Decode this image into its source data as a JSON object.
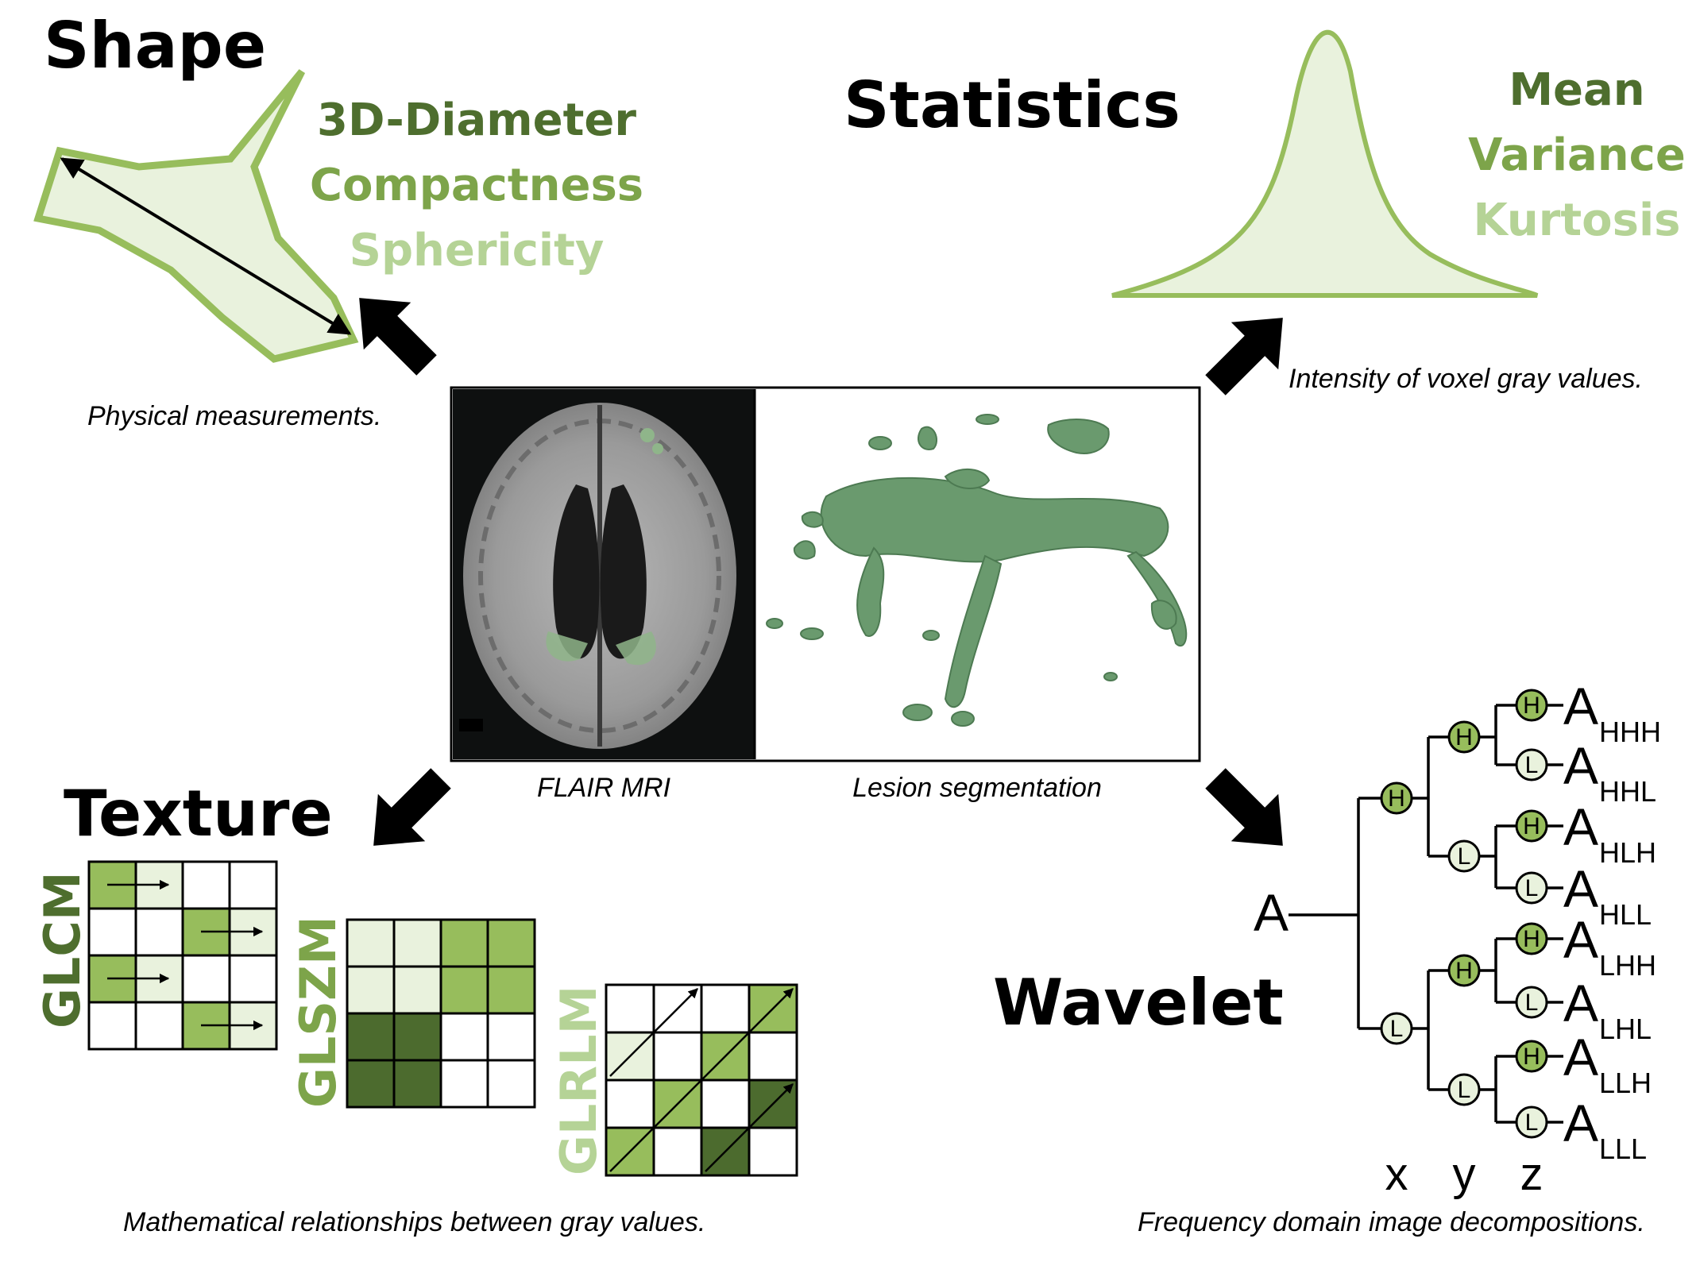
{
  "colors": {
    "light": "#e9f2dd",
    "mid": "#97bd5c",
    "midtext": "#7da44a",
    "dark": "#4c6b2e",
    "darktext": "#4e6e2e",
    "pale": "#b5d396",
    "lesion": "#6a9a6e"
  },
  "shape": {
    "title": "Shape",
    "features": [
      "3D-Diameter",
      "Compactness",
      "Sphericity"
    ],
    "caption": "Physical measurements."
  },
  "statistics": {
    "title": "Statistics",
    "features": [
      "Mean",
      "Variance",
      "Kurtosis"
    ],
    "caption": "Intensity of voxel gray values."
  },
  "center": {
    "mri_caption": "FLAIR MRI",
    "segmentation_caption": "Lesion segmentation"
  },
  "texture": {
    "title": "Texture",
    "caption": "Mathematical relationships between gray values.",
    "matrices": [
      "GLCM",
      "GLSZM",
      "GLRLM"
    ],
    "glszm_grid": [
      [
        "L",
        "L",
        "M",
        "M"
      ],
      [
        "L",
        "L",
        "M",
        "M"
      ],
      [
        "D",
        "D",
        "W",
        "W"
      ],
      [
        "D",
        "D",
        "W",
        "W"
      ]
    ]
  },
  "wavelet": {
    "title": "Wavelet",
    "caption": "Frequency domain image decompositions.",
    "root": "A",
    "root_label": "A",
    "node_high": "H",
    "node_low": "L",
    "leaves": [
      "HHH",
      "HHL",
      "HLH",
      "HLL",
      "LHH",
      "LHL",
      "LLH",
      "LLL"
    ],
    "leaf_prefix": "A",
    "axes": [
      "x",
      "y",
      "z"
    ]
  }
}
